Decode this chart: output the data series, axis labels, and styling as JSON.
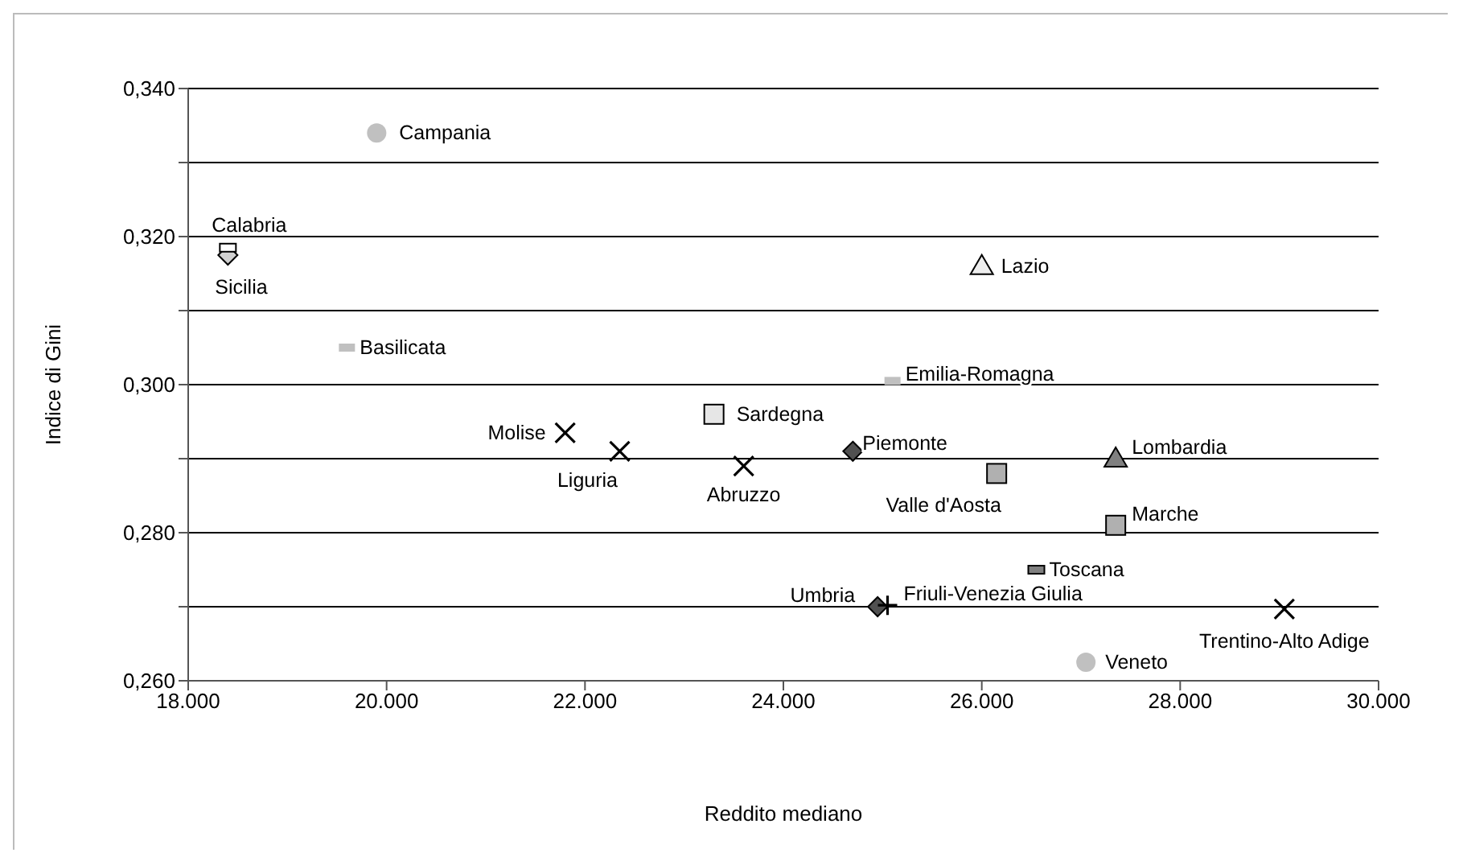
{
  "chart_data": {
    "type": "scatter",
    "xlabel": "Reddito mediano",
    "ylabel": "Indice di Gini",
    "xlim": [
      18000,
      30000
    ],
    "ylim": [
      0.26,
      0.34
    ],
    "xticks": [
      {
        "value": 18000,
        "label": "18.000"
      },
      {
        "value": 20000,
        "label": "20.000"
      },
      {
        "value": 22000,
        "label": "22.000"
      },
      {
        "value": 24000,
        "label": "24.000"
      },
      {
        "value": 26000,
        "label": "26.000"
      },
      {
        "value": 28000,
        "label": "28.000"
      },
      {
        "value": 30000,
        "label": "30.000"
      }
    ],
    "yticks": [
      {
        "value": 0.26,
        "label": "0,260"
      },
      {
        "value": 0.27,
        "label": null
      },
      {
        "value": 0.28,
        "label": "0,280"
      },
      {
        "value": 0.29,
        "label": null
      },
      {
        "value": 0.3,
        "label": "0,300"
      },
      {
        "value": 0.31,
        "label": null
      },
      {
        "value": 0.32,
        "label": "0,320"
      },
      {
        "value": 0.33,
        "label": null
      },
      {
        "value": 0.34,
        "label": "0,340"
      }
    ],
    "grid": "y",
    "legend": false,
    "series": [
      {
        "name": "Campania",
        "color": "#c0c0c0",
        "marker": "circle",
        "x": [
          19900
        ],
        "values": [
          0.334
        ]
      },
      {
        "name": "Sicilia",
        "color": "#d0d0d0",
        "marker": "diamond",
        "x": [
          18400
        ],
        "values": [
          0.3175
        ]
      },
      {
        "name": "Calabria",
        "color": "#ffffff",
        "x": [
          18400
        ],
        "values": [
          0.3185
        ]
      },
      {
        "name": "Basilicata",
        "color": "#c0c0c0",
        "x": [
          19600
        ],
        "values": [
          0.305
        ]
      },
      {
        "name": "Lazio",
        "color": "#eeeeee",
        "marker": "triangle",
        "x": [
          26000
        ],
        "values": [
          0.316
        ]
      },
      {
        "name": "Emilia-Romagna",
        "color": "#c0c0c0",
        "x": [
          25100
        ],
        "values": [
          0.3005
        ]
      },
      {
        "name": "Molise",
        "color": "#000000",
        "marker": "cross",
        "x": [
          21800
        ],
        "values": [
          0.2935
        ]
      },
      {
        "name": "Liguria",
        "color": "#000000",
        "marker": "cross",
        "x": [
          22350
        ],
        "values": [
          0.291
        ]
      },
      {
        "name": "Sardegna",
        "color": "#e6e6e6",
        "marker": "square",
        "x": [
          23300
        ],
        "values": [
          0.296
        ]
      },
      {
        "name": "Abruzzo",
        "color": "#000000",
        "marker": "cross",
        "x": [
          23600
        ],
        "values": [
          0.289
        ]
      },
      {
        "name": "Piemonte",
        "color": "#505050",
        "marker": "diamond",
        "x": [
          24700
        ],
        "values": [
          0.291
        ]
      },
      {
        "name": "Valle d'Aosta",
        "color": "#b0b0b0",
        "marker": "square",
        "x": [
          26150
        ],
        "values": [
          0.288
        ]
      },
      {
        "name": "Lombardia",
        "color": "#808080",
        "marker": "triangle",
        "x": [
          27350
        ],
        "values": [
          0.29
        ]
      },
      {
        "name": "Marche",
        "color": "#b0b0b0",
        "marker": "square",
        "x": [
          27350
        ],
        "values": [
          0.281
        ]
      },
      {
        "name": "Toscana",
        "color": "#808080",
        "x": [
          26550
        ],
        "values": [
          0.275
        ]
      },
      {
        "name": "Umbria",
        "color": "#505050",
        "marker": "diamond",
        "x": [
          24950
        ],
        "values": [
          0.27
        ]
      },
      {
        "name": "Friuli-Venezia Giulia",
        "color": "#000000",
        "marker": "plus",
        "x": [
          25050
        ],
        "values": [
          0.2702
        ]
      },
      {
        "name": "Trentino-Alto Adige",
        "color": "#000000",
        "marker": "cross",
        "x": [
          29050
        ],
        "values": [
          0.2697
        ]
      },
      {
        "name": "Veneto",
        "color": "#c0c0c0",
        "marker": "circle",
        "x": [
          27050
        ],
        "values": [
          0.2625
        ]
      }
    ]
  }
}
